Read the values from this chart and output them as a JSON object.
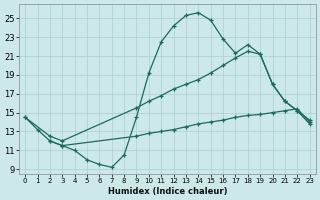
{
  "xlabel": "Humidex (Indice chaleur)",
  "xlim": [
    -0.5,
    23.5
  ],
  "ylim": [
    8.5,
    26.5
  ],
  "yticks": [
    9,
    11,
    13,
    15,
    17,
    19,
    21,
    23,
    25
  ],
  "xticks": [
    0,
    1,
    2,
    3,
    4,
    5,
    6,
    7,
    8,
    9,
    10,
    11,
    12,
    13,
    14,
    15,
    16,
    17,
    18,
    19,
    20,
    21,
    22,
    23
  ],
  "bg_color": "#cce8e8",
  "grid_color": "#aacfcf",
  "line_color": "#1a6b5a",
  "line1_x": [
    0,
    1,
    2,
    3,
    4,
    5,
    6,
    7,
    8,
    9,
    10,
    11,
    12,
    13,
    14,
    15,
    16,
    17,
    18,
    19,
    20,
    21,
    22,
    23
  ],
  "line1_y": [
    14.5,
    13.2,
    12.0,
    11.5,
    11.0,
    10.0,
    9.5,
    9.2,
    10.5,
    14.5,
    19.2,
    22.5,
    24.2,
    25.3,
    25.6,
    24.8,
    22.8,
    21.3,
    22.2,
    21.2,
    18.0,
    16.2,
    15.2,
    13.8
  ],
  "line2_x": [
    0,
    2,
    3,
    9,
    10,
    11,
    12,
    13,
    14,
    15,
    16,
    17,
    18,
    19,
    20,
    21,
    22,
    23
  ],
  "line2_y": [
    14.5,
    12.5,
    12.0,
    15.5,
    16.2,
    16.8,
    17.5,
    18.0,
    18.5,
    19.2,
    20.0,
    20.8,
    21.5,
    21.2,
    18.0,
    16.2,
    15.2,
    14.2
  ],
  "line3_x": [
    2,
    3,
    9,
    10,
    11,
    12,
    13,
    14,
    15,
    16,
    17,
    18,
    19,
    20,
    21,
    22,
    23
  ],
  "line3_y": [
    12.0,
    11.5,
    12.5,
    12.8,
    13.0,
    13.2,
    13.5,
    13.8,
    14.0,
    14.2,
    14.5,
    14.7,
    14.8,
    15.0,
    15.2,
    15.4,
    14.0
  ]
}
